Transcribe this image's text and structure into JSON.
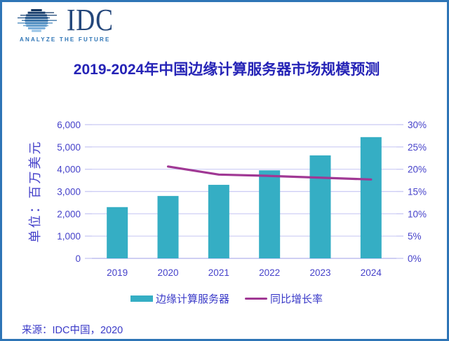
{
  "frame": {
    "border_color": "#2E75B6",
    "background": "#FFFFFF"
  },
  "logo": {
    "name": "IDC",
    "tagline": "ANALYZE THE FUTURE",
    "text_color": "#24477B",
    "tagline_color": "#2E75B6",
    "globe_icon_colors": [
      "#13345E",
      "#173B6A",
      "#1D4678",
      "#285A8E",
      "#3570A6",
      "#4585BC",
      "#5F9ACB",
      "#7BAFDA",
      "#97C3E6"
    ]
  },
  "title": {
    "text": "2019-2024年中国边缘计算服务器市场规模预测",
    "color": "#2523B6"
  },
  "chart_data": {
    "type": "bar",
    "categories": [
      "2019",
      "2020",
      "2021",
      "2022",
      "2023",
      "2024"
    ],
    "series": [
      {
        "name": "边缘计算服务器",
        "type": "bar",
        "axis": "left",
        "color": "#35AEC4",
        "values": [
          2300,
          2800,
          3300,
          3950,
          4620,
          5440
        ]
      },
      {
        "name": "同比增长率",
        "type": "line",
        "axis": "right",
        "color": "#A03894",
        "values": [
          null,
          20.6,
          18.8,
          18.5,
          18.1,
          17.7
        ]
      }
    ],
    "title": "2019-2024年中国边缘计算服务器市场规模预测",
    "xlabel": "",
    "ylabel": "单位：百万美元",
    "left_axis": {
      "label": "单位：百万美元",
      "min": 0,
      "max": 6000,
      "ticks": [
        "6,000",
        "5,000",
        "4,000",
        "3,000",
        "2,000",
        "1,000",
        "0"
      ]
    },
    "right_axis": {
      "min": 0,
      "max": 30,
      "ticks": [
        "30%",
        "25%",
        "20%",
        "15%",
        "10%",
        "5%",
        "0%"
      ]
    },
    "grid": true,
    "gridline_color": "#CBCBF4",
    "axis_line_color": "#BDBDEF",
    "label_color": "#4642CA",
    "legend_position": "bottom"
  },
  "legend": {
    "items": [
      {
        "label": "边缘计算服务器",
        "color": "#35AEC4",
        "type": "bar"
      },
      {
        "label": "同比增长率",
        "color": "#A03894",
        "type": "line"
      }
    ],
    "text_color": "#3A3AC8"
  },
  "source": {
    "text": "来源：IDC中国，2020",
    "color": "#3A3AC8"
  }
}
